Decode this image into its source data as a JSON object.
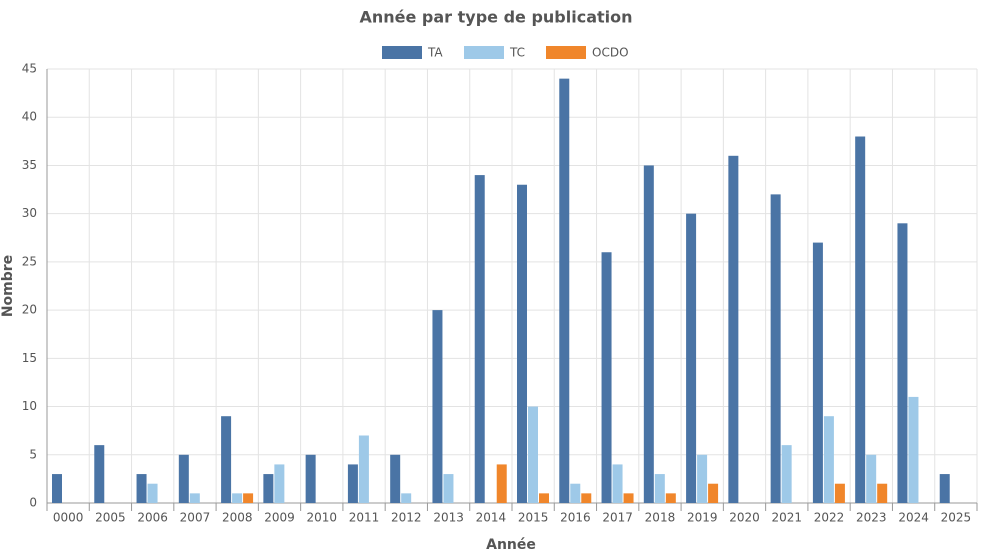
{
  "chart_data": {
    "type": "grouped-bar",
    "title": "Année par type de publication",
    "x_label": "Année",
    "y_label": "Nombre",
    "categories": [
      "0000",
      "2005",
      "2006",
      "2007",
      "2008",
      "2009",
      "2010",
      "2011",
      "2012",
      "2013",
      "2014",
      "2015",
      "2016",
      "2017",
      "2018",
      "2019",
      "2020",
      "2021",
      "2022",
      "2023",
      "2024",
      "2025"
    ],
    "series": [
      {
        "name": "TA",
        "color": "#4a74a5",
        "values": [
          3,
          6,
          3,
          5,
          9,
          3,
          5,
          4,
          5,
          20,
          34,
          33,
          44,
          26,
          35,
          30,
          36,
          32,
          27,
          38,
          29,
          3
        ]
      },
      {
        "name": "TC",
        "color": "#9ec9e8",
        "values": [
          0,
          0,
          2,
          1,
          1,
          4,
          0,
          7,
          1,
          3,
          0,
          10,
          2,
          4,
          3,
          5,
          0,
          6,
          9,
          5,
          11,
          0
        ]
      },
      {
        "name": "OCDO",
        "color": "#f0862b",
        "values": [
          0,
          0,
          0,
          0,
          1,
          0,
          0,
          0,
          0,
          0,
          4,
          1,
          1,
          1,
          1,
          2,
          0,
          0,
          2,
          2,
          0,
          0
        ]
      }
    ],
    "ylim": [
      0,
      45
    ],
    "yticks": [
      0,
      5,
      10,
      15,
      20,
      25,
      30,
      35,
      40,
      45
    ],
    "grid": true,
    "legend": "top"
  }
}
